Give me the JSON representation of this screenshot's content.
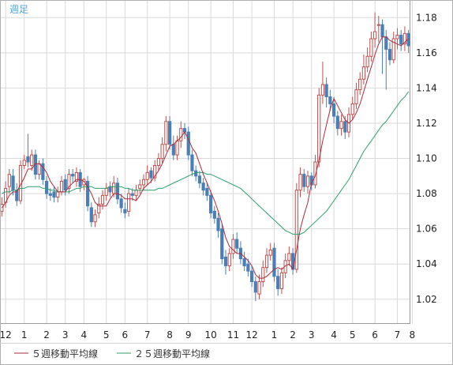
{
  "chart_data": {
    "type": "candlestick",
    "period_label": "週足",
    "y_ticks": [
      "1.18",
      "1.16",
      "1.14",
      "1.12",
      "1.10",
      "1.08",
      "1.06",
      "1.04",
      "1.02"
    ],
    "y_tick_values": [
      1.18,
      1.16,
      1.14,
      1.12,
      1.1,
      1.08,
      1.06,
      1.04,
      1.02
    ],
    "ylim": [
      1.006,
      1.19
    ],
    "x_ticks": [
      "12",
      "1",
      "2",
      "3",
      "4",
      "5",
      "6",
      "7",
      "8",
      "9",
      "10",
      "11",
      "12",
      "1",
      "2",
      "3",
      "4",
      "5",
      "6",
      "7",
      "8"
    ],
    "x_tick_index": [
      1,
      6,
      12,
      17,
      22,
      28,
      33,
      39,
      45,
      50,
      56,
      62,
      67,
      73,
      78,
      83,
      89,
      94,
      100,
      106,
      110
    ],
    "grid": true,
    "colors": {
      "up": "#c0504d",
      "down": "#4a7fb5",
      "ma5": "#b02a3a",
      "ma25": "#2aa06a",
      "period": "#5aa6d8",
      "grid": "#d9d9d9",
      "frame": "#9a9a9a"
    },
    "legend": [
      {
        "name": "５週移動平均線",
        "color": "#b02a3a"
      },
      {
        "name": "２５週移動平均線",
        "color": "#2aa06a"
      }
    ],
    "series": [
      {
        "name": "close",
        "values": [
          1.074,
          1.083,
          1.091,
          1.082,
          1.076,
          1.096,
          1.099,
          1.098,
          1.102,
          1.091,
          1.097,
          1.088,
          1.08,
          1.079,
          1.078,
          1.081,
          1.087,
          1.082,
          1.091,
          1.09,
          1.092,
          1.084,
          1.088,
          1.073,
          1.064,
          1.068,
          1.074,
          1.079,
          1.083,
          1.081,
          1.086,
          1.077,
          1.072,
          1.069,
          1.08,
          1.079,
          1.082,
          1.085,
          1.088,
          1.092,
          1.089,
          1.096,
          1.1,
          1.108,
          1.121,
          1.108,
          1.102,
          1.11,
          1.117,
          1.115,
          1.102,
          1.093,
          1.09,
          1.086,
          1.082,
          1.079,
          1.069,
          1.066,
          1.059,
          1.043,
          1.039,
          1.046,
          1.054,
          1.049,
          1.043,
          1.039,
          1.036,
          1.03,
          1.024,
          1.03,
          1.038,
          1.045,
          1.048,
          1.033,
          1.026,
          1.035,
          1.042,
          1.046,
          1.037,
          1.082,
          1.091,
          1.084,
          1.09,
          1.085,
          1.098,
          1.136,
          1.142,
          1.135,
          1.131,
          1.124,
          1.117,
          1.121,
          1.115,
          1.125,
          1.131,
          1.139,
          1.145,
          1.152,
          1.158,
          1.168,
          1.172,
          1.176,
          1.169,
          1.162,
          1.156,
          1.168,
          1.17,
          1.165,
          1.171,
          1.164
        ]
      },
      {
        "name": "open",
        "values": [
          1.07,
          1.075,
          1.084,
          1.09,
          1.082,
          1.076,
          1.096,
          1.101,
          1.096,
          1.102,
          1.091,
          1.097,
          1.087,
          1.08,
          1.081,
          1.078,
          1.081,
          1.088,
          1.083,
          1.091,
          1.087,
          1.092,
          1.085,
          1.087,
          1.072,
          1.064,
          1.069,
          1.074,
          1.079,
          1.084,
          1.08,
          1.086,
          1.077,
          1.071,
          1.07,
          1.08,
          1.079,
          1.083,
          1.085,
          1.088,
          1.093,
          1.089,
          1.096,
          1.1,
          1.108,
          1.121,
          1.108,
          1.102,
          1.11,
          1.117,
          1.115,
          1.102,
          1.093,
          1.09,
          1.086,
          1.083,
          1.079,
          1.07,
          1.066,
          1.06,
          1.044,
          1.039,
          1.046,
          1.054,
          1.049,
          1.043,
          1.04,
          1.036,
          1.03,
          1.023,
          1.03,
          1.038,
          1.045,
          1.049,
          1.033,
          1.026,
          1.035,
          1.042,
          1.046,
          1.037,
          1.082,
          1.091,
          1.084,
          1.09,
          1.085,
          1.098,
          1.136,
          1.142,
          1.135,
          1.131,
          1.124,
          1.117,
          1.121,
          1.115,
          1.125,
          1.131,
          1.139,
          1.145,
          1.152,
          1.158,
          1.168,
          1.176,
          1.176,
          1.169,
          1.162,
          1.156,
          1.168,
          1.17,
          1.165,
          1.171
        ]
      },
      {
        "name": "high",
        "values": [
          1.078,
          1.087,
          1.094,
          1.094,
          1.086,
          1.099,
          1.102,
          1.114,
          1.105,
          1.105,
          1.099,
          1.1,
          1.09,
          1.083,
          1.084,
          1.084,
          1.09,
          1.091,
          1.094,
          1.094,
          1.095,
          1.094,
          1.089,
          1.09,
          1.075,
          1.071,
          1.078,
          1.082,
          1.086,
          1.087,
          1.09,
          1.089,
          1.08,
          1.075,
          1.083,
          1.083,
          1.085,
          1.088,
          1.091,
          1.096,
          1.095,
          1.099,
          1.103,
          1.112,
          1.124,
          1.124,
          1.113,
          1.113,
          1.121,
          1.12,
          1.118,
          1.105,
          1.096,
          1.093,
          1.089,
          1.086,
          1.082,
          1.073,
          1.069,
          1.063,
          1.048,
          1.049,
          1.057,
          1.058,
          1.053,
          1.047,
          1.043,
          1.039,
          1.033,
          1.034,
          1.042,
          1.049,
          1.052,
          1.052,
          1.037,
          1.038,
          1.046,
          1.05,
          1.049,
          1.086,
          1.095,
          1.094,
          1.093,
          1.092,
          1.102,
          1.14,
          1.155,
          1.146,
          1.139,
          1.135,
          1.127,
          1.125,
          1.124,
          1.129,
          1.135,
          1.143,
          1.149,
          1.159,
          1.163,
          1.172,
          1.183,
          1.181,
          1.179,
          1.173,
          1.166,
          1.172,
          1.174,
          1.173,
          1.175,
          1.173
        ]
      },
      {
        "name": "low",
        "values": [
          1.067,
          1.072,
          1.08,
          1.079,
          1.073,
          1.074,
          1.094,
          1.095,
          1.093,
          1.088,
          1.088,
          1.085,
          1.077,
          1.076,
          1.075,
          1.075,
          1.079,
          1.079,
          1.08,
          1.086,
          1.084,
          1.081,
          1.082,
          1.07,
          1.061,
          1.061,
          1.066,
          1.071,
          1.076,
          1.078,
          1.078,
          1.074,
          1.069,
          1.066,
          1.067,
          1.076,
          1.076,
          1.08,
          1.082,
          1.085,
          1.086,
          1.087,
          1.093,
          1.097,
          1.104,
          1.105,
          1.099,
          1.099,
          1.106,
          1.111,
          1.099,
          1.09,
          1.087,
          1.083,
          1.079,
          1.076,
          1.066,
          1.063,
          1.055,
          1.04,
          1.034,
          1.036,
          1.043,
          1.046,
          1.04,
          1.036,
          1.033,
          1.027,
          1.019,
          1.02,
          1.027,
          1.035,
          1.042,
          1.03,
          1.022,
          1.023,
          1.032,
          1.039,
          1.034,
          1.035,
          1.078,
          1.081,
          1.08,
          1.082,
          1.083,
          1.095,
          1.131,
          1.129,
          1.127,
          1.12,
          1.113,
          1.113,
          1.111,
          1.112,
          1.122,
          1.128,
          1.136,
          1.142,
          1.149,
          1.155,
          1.163,
          1.166,
          1.148,
          1.139,
          1.153,
          1.154,
          1.162,
          1.161,
          1.161,
          1.16
        ]
      },
      {
        "name": "５週移動平均線",
        "values": [
          1.072,
          1.075,
          1.079,
          1.081,
          1.081,
          1.085,
          1.089,
          1.094,
          1.094,
          1.097,
          1.097,
          1.095,
          1.092,
          1.087,
          1.084,
          1.081,
          1.081,
          1.081,
          1.084,
          1.086,
          1.088,
          1.088,
          1.087,
          1.084,
          1.08,
          1.075,
          1.073,
          1.073,
          1.073,
          1.077,
          1.08,
          1.08,
          1.079,
          1.077,
          1.077,
          1.077,
          1.076,
          1.079,
          1.083,
          1.085,
          1.087,
          1.09,
          1.093,
          1.097,
          1.102,
          1.107,
          1.108,
          1.11,
          1.112,
          1.115,
          1.111,
          1.106,
          1.103,
          1.097,
          1.091,
          1.086,
          1.081,
          1.076,
          1.07,
          1.063,
          1.055,
          1.05,
          1.048,
          1.046,
          1.046,
          1.044,
          1.042,
          1.039,
          1.034,
          1.032,
          1.032,
          1.033,
          1.035,
          1.037,
          1.038,
          1.037,
          1.039,
          1.04,
          1.037,
          1.048,
          1.06,
          1.068,
          1.075,
          1.086,
          1.09,
          1.099,
          1.11,
          1.119,
          1.128,
          1.134,
          1.13,
          1.126,
          1.122,
          1.12,
          1.122,
          1.126,
          1.131,
          1.138,
          1.145,
          1.152,
          1.159,
          1.165,
          1.169,
          1.169,
          1.167,
          1.166,
          1.165,
          1.164,
          1.166,
          1.168
        ]
      },
      {
        "name": "２５週移動平均線",
        "values": [
          1.08,
          1.081,
          1.081,
          1.082,
          1.082,
          1.083,
          1.083,
          1.084,
          1.084,
          1.084,
          1.084,
          1.083,
          1.083,
          1.082,
          1.082,
          1.081,
          1.081,
          1.081,
          1.081,
          1.082,
          1.083,
          1.083,
          1.084,
          1.084,
          1.084,
          1.083,
          1.083,
          1.083,
          1.083,
          1.084,
          1.084,
          1.084,
          1.084,
          1.083,
          1.083,
          1.082,
          1.082,
          1.082,
          1.082,
          1.082,
          1.082,
          1.082,
          1.083,
          1.083,
          1.084,
          1.085,
          1.086,
          1.087,
          1.088,
          1.089,
          1.09,
          1.091,
          1.092,
          1.092,
          1.092,
          1.091,
          1.091,
          1.09,
          1.089,
          1.088,
          1.087,
          1.086,
          1.085,
          1.084,
          1.083,
          1.081,
          1.079,
          1.077,
          1.075,
          1.073,
          1.071,
          1.069,
          1.067,
          1.065,
          1.063,
          1.061,
          1.059,
          1.058,
          1.057,
          1.057,
          1.057,
          1.058,
          1.06,
          1.062,
          1.064,
          1.066,
          1.068,
          1.07,
          1.073,
          1.076,
          1.079,
          1.082,
          1.085,
          1.088,
          1.092,
          1.096,
          1.1,
          1.104,
          1.107,
          1.11,
          1.113,
          1.116,
          1.119,
          1.121,
          1.124,
          1.127,
          1.13,
          1.133,
          1.135,
          1.138
        ]
      }
    ]
  }
}
